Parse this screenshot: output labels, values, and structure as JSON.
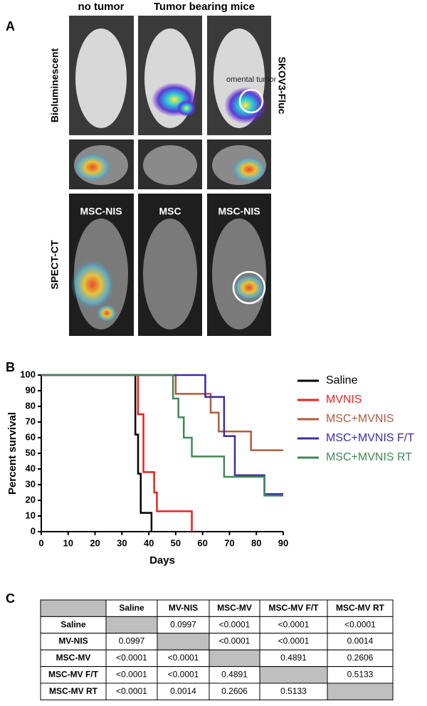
{
  "panel_a": {
    "label": "A",
    "column_headers": [
      "no tumor",
      "Tumor bearing mice"
    ],
    "row_labels": [
      "Bioluminescent",
      "SPECT-CT"
    ],
    "cell_line": "SKOV3-Fluc",
    "annotation": "omental tumor",
    "treatments": [
      "MSC-NIS",
      "MSC",
      "MSC-NIS"
    ]
  },
  "panel_b_label": "B",
  "chart_data": {
    "type": "step",
    "xlabel": "Days",
    "ylabel": "Percent survival",
    "xlim": [
      0,
      90
    ],
    "ylim": [
      0,
      100
    ],
    "xticks": [
      0,
      10,
      20,
      30,
      40,
      50,
      60,
      70,
      80,
      90
    ],
    "yticks": [
      0,
      10,
      20,
      30,
      40,
      50,
      60,
      70,
      80,
      90,
      100
    ],
    "series": [
      {
        "name": "Saline",
        "color": "#000000",
        "x": [
          0,
          35,
          36,
          37,
          41
        ],
        "values": [
          100,
          62,
          37,
          12,
          0
        ]
      },
      {
        "name": "MVNIS",
        "color": "#e8231c",
        "x": [
          0,
          36,
          38,
          42,
          43,
          56
        ],
        "values": [
          100,
          75,
          38,
          25,
          13,
          0
        ]
      },
      {
        "name": "MSC+MVNIS",
        "color": "#b35a3c",
        "x": [
          0,
          50,
          63,
          66,
          78,
          90
        ],
        "values": [
          100,
          88,
          76,
          64,
          52,
          52
        ]
      },
      {
        "name": "MSC+MVNIS F/T",
        "color": "#3b2ca8",
        "x": [
          0,
          61,
          68,
          72,
          83,
          90
        ],
        "values": [
          100,
          86,
          61,
          36,
          24,
          24
        ]
      },
      {
        "name": "MSC+MVNIS RT",
        "color": "#3f8a55",
        "x": [
          0,
          49,
          51,
          53,
          56,
          68,
          83,
          90
        ],
        "values": [
          100,
          85,
          73,
          60,
          48,
          35,
          23,
          23
        ]
      }
    ]
  },
  "panel_c_label": "C",
  "table": {
    "columns": [
      "Saline",
      "MV-NIS",
      "MSC-MV",
      "MSC-MV F/T",
      "MSC-MV RT"
    ],
    "rows": [
      {
        "label": "Saline",
        "cells": [
          null,
          0.0997,
          "<0.0001",
          "<0.0001",
          "<0.0001"
        ]
      },
      {
        "label": "MV-NIS",
        "cells": [
          0.0997,
          null,
          "<0.0001",
          "<0.0001",
          0.0014
        ]
      },
      {
        "label": "MSC-MV",
        "cells": [
          "<0.0001",
          "<0.0001",
          null,
          0.4891,
          0.2606
        ]
      },
      {
        "label": "MSC-MV F/T",
        "cells": [
          "<0.0001",
          "<0.0001",
          0.4891,
          null,
          0.5133
        ]
      },
      {
        "label": "MSC-MV RT",
        "cells": [
          "<0.0001",
          0.0014,
          0.2606,
          0.5133,
          null
        ]
      }
    ]
  }
}
